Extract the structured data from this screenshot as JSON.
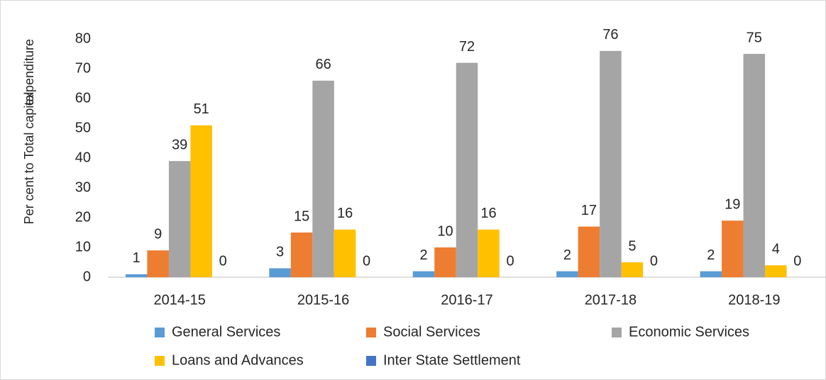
{
  "chart_data": {
    "type": "bar",
    "y_label": [
      "Per cent to Total capital",
      "expenditure"
    ],
    "categories": [
      "2014-15",
      "2015-16",
      "2016-17",
      "2017-18",
      "2018-19"
    ],
    "series": [
      {
        "name": "General Services",
        "color": "#5b9bd5",
        "values": [
          1,
          3,
          2,
          2,
          2
        ]
      },
      {
        "name": "Social Services",
        "color": "#ed7d31",
        "values": [
          9,
          15,
          10,
          17,
          19
        ]
      },
      {
        "name": "Economic Services",
        "color": "#a5a5a5",
        "values": [
          39,
          66,
          72,
          76,
          75
        ]
      },
      {
        "name": "Loans and Advances",
        "color": "#ffc000",
        "values": [
          51,
          16,
          16,
          5,
          4
        ]
      },
      {
        "name": "Inter State Settlement",
        "color": "#4472c4",
        "values": [
          0,
          0,
          0,
          0,
          0
        ]
      }
    ],
    "ylim": [
      0,
      80
    ],
    "yticks": [
      0,
      10,
      20,
      30,
      40,
      50,
      60,
      70,
      80
    ],
    "grid": false
  }
}
